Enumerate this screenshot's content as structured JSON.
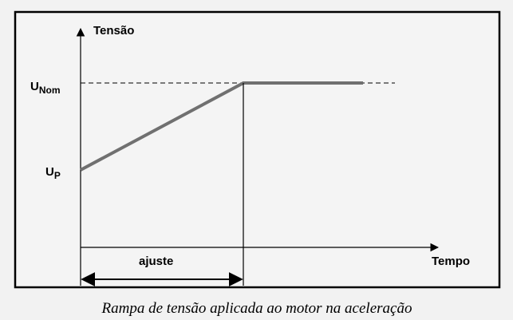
{
  "diagram": {
    "y_axis_label": "Tensão",
    "x_axis_label": "Tempo",
    "u_nom": {
      "main": "U",
      "sub": "Nom"
    },
    "u_p": {
      "main": "U",
      "sub": "P"
    },
    "interval_label": "ajuste"
  },
  "caption": "Rampa de tensão aplicada ao motor na aceleração"
}
